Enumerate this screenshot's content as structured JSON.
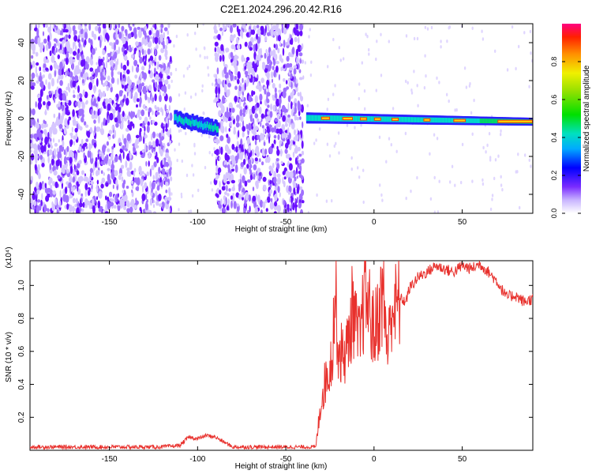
{
  "chart_data": [
    {
      "type": "heatmap",
      "title": "C2E1.2024.296.20.42.R16",
      "xlabel": "Height of straight line (km)",
      "ylabel": "Frequency (Hz)",
      "xlim": [
        -195,
        90
      ],
      "ylim": [
        -50,
        50
      ],
      "xticks": [
        -150,
        -100,
        -50,
        0,
        50
      ],
      "yticks": [
        -40,
        -20,
        0,
        20,
        40
      ],
      "colorbar": {
        "label": "Normalized spectral amplitude",
        "range": [
          0,
          1
        ],
        "ticks": [
          "0.0",
          "0.2",
          "0.4",
          "0.6",
          "0.8"
        ]
      },
      "regions": [
        {
          "x": [
            -195,
            -115
          ],
          "desc": "broadband noise",
          "amplitude": 0.15
        },
        {
          "x": [
            -113,
            -90
          ],
          "y_center": 0,
          "bandwidth": 10,
          "amplitude": 0.4
        },
        {
          "x": [
            -90,
            -40
          ],
          "desc": "broadband noise",
          "amplitude": 0.15
        },
        {
          "x": [
            -38,
            90
          ],
          "y_center": 0,
          "bandwidth": 6,
          "amplitude": 0.9
        }
      ]
    },
    {
      "type": "line",
      "xlabel": "Height of straight line (km)",
      "ylabel": "SNR (10 * v/v)",
      "y_multiplier": "(x10⁴)",
      "xlim": [
        -195,
        90
      ],
      "ylim": [
        0,
        1.15
      ],
      "xticks": [
        -150,
        -100,
        -50,
        0,
        50
      ],
      "yticks": [
        "0.2",
        "0.4",
        "0.6",
        "0.8",
        "1.0"
      ],
      "series": [
        {
          "color": "#e8312d",
          "x": [
            -195,
            -180,
            -160,
            -140,
            -120,
            -110,
            -105,
            -100,
            -95,
            -90,
            -85,
            -80,
            -60,
            -40,
            -33,
            -30,
            -28,
            -26,
            -24,
            -22,
            -20,
            -18,
            -15,
            -12,
            -10,
            -8,
            -5,
            -2,
            0,
            2,
            5,
            8,
            10,
            12,
            15,
            18,
            20,
            25,
            30,
            35,
            40,
            45,
            50,
            55,
            60,
            65,
            70,
            75,
            80,
            85,
            90
          ],
          "y": [
            0.02,
            0.02,
            0.02,
            0.02,
            0.02,
            0.03,
            0.08,
            0.07,
            0.09,
            0.08,
            0.05,
            0.02,
            0.02,
            0.02,
            0.02,
            0.3,
            0.4,
            0.48,
            0.55,
            0.95,
            0.6,
            0.58,
            0.62,
            0.88,
            0.72,
            0.65,
            0.98,
            0.82,
            0.7,
            0.8,
            0.95,
            0.6,
            0.9,
            0.85,
            0.92,
            0.9,
            0.98,
            1.05,
            1.08,
            1.12,
            1.1,
            1.08,
            1.12,
            1.1,
            1.13,
            1.08,
            1.02,
            0.93,
            0.94,
            0.9,
            0.92
          ]
        }
      ]
    }
  ]
}
